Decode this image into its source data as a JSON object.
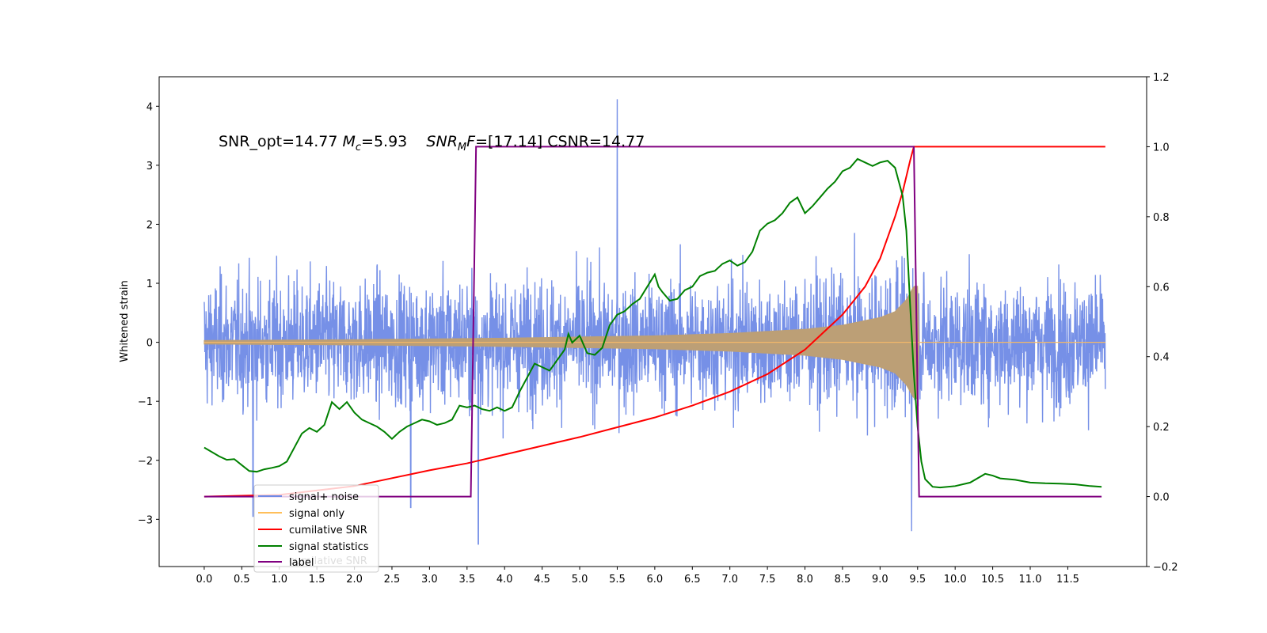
{
  "chart_data": {
    "type": "line",
    "annotation": "SNR_opt=14.77 M_c=5.93   SNR_M F=[17.14] CSNR=14.77",
    "annotation_parts": {
      "p1": "SNR_opt=14.77 ",
      "p2": "M",
      "p3": "c",
      "p4": "=5.93    ",
      "p5": "SNR",
      "p6": "M",
      "p7": "F",
      "p8": "=[17.14] CSNR=14.77"
    },
    "ylabel": "Whitened strain",
    "xlim": [
      -0.6,
      12.55
    ],
    "ylim": [
      -3.8,
      4.5
    ],
    "y2lim": [
      -0.2,
      1.2
    ],
    "x_ticks": [
      "0.0",
      "0.5",
      "1.0",
      "1.5",
      "2.0",
      "2.5",
      "3.0",
      "3.5",
      "4.0",
      "4.5",
      "5.0",
      "5.5",
      "6.0",
      "6.5",
      "7.0",
      "7.5",
      "8.0",
      "8.5",
      "9.0",
      "9.5",
      "10.0",
      "10.5",
      "11.0",
      "11.5"
    ],
    "y_ticks": [
      "4",
      "3",
      "2",
      "1",
      "0",
      "−1",
      "−2",
      "−3"
    ],
    "y2_ticks": [
      "1.2",
      "1.0",
      "0.8",
      "0.6",
      "0.4",
      "0.2",
      "0.0",
      "−0.2"
    ],
    "legend": {
      "placement": "lower-left",
      "entries": [
        {
          "label": "signal+ noise",
          "color": "#6f8ae6"
        },
        {
          "label": "signal only",
          "color": "#ffbf5a"
        },
        {
          "label": "cumilative SNR",
          "color": "#ff0000"
        },
        {
          "label": "signal statistics",
          "color": "#008000"
        },
        {
          "label": "label",
          "color": "#800080"
        }
      ],
      "overlap_text": "cumilative SNR"
    },
    "series": [
      {
        "name": "signal+ noise",
        "axis": "left",
        "color": "#6f8ae6",
        "x_range": [
          0.0,
          12.0
        ],
        "typical_amplitude": 1.0,
        "visible_peaks": [
          {
            "x": 5.5,
            "y": 4.12
          },
          {
            "x": 3.65,
            "y": -3.42
          },
          {
            "x": 9.42,
            "y": -3.2
          },
          {
            "x": 0.65,
            "y": -2.95
          },
          {
            "x": 2.75,
            "y": -2.8
          }
        ]
      },
      {
        "name": "signal only",
        "axis": "left",
        "color": "#ffbf5a",
        "envelope": {
          "x": [
            0.0,
            2.0,
            4.0,
            6.0,
            7.0,
            8.0,
            8.5,
            9.0,
            9.2,
            9.35,
            9.45,
            9.5,
            12.0
          ],
          "amplitude": [
            0.03,
            0.045,
            0.07,
            0.11,
            0.15,
            0.22,
            0.29,
            0.42,
            0.52,
            0.72,
            0.95,
            0.0,
            0.0
          ]
        }
      },
      {
        "name": "cumilative SNR",
        "axis": "right",
        "color": "#ff0000",
        "x": [
          0.0,
          1.0,
          2.0,
          3.0,
          3.5,
          4.0,
          5.0,
          6.0,
          6.5,
          7.0,
          7.5,
          8.0,
          8.5,
          8.8,
          9.0,
          9.2,
          9.3,
          9.4,
          9.45,
          9.5,
          12.0
        ],
        "y": [
          0.0,
          0.005,
          0.03,
          0.075,
          0.095,
          0.12,
          0.17,
          0.226,
          0.26,
          0.3,
          0.35,
          0.42,
          0.52,
          0.6,
          0.68,
          0.8,
          0.87,
          0.96,
          1.0,
          1.0,
          1.0
        ]
      },
      {
        "name": "signal statistics",
        "axis": "right",
        "color": "#008000",
        "x": [
          0.0,
          0.2,
          0.3,
          0.4,
          0.5,
          0.6,
          0.7,
          0.8,
          0.9,
          1.0,
          1.1,
          1.2,
          1.3,
          1.4,
          1.5,
          1.6,
          1.7,
          1.8,
          1.9,
          2.0,
          2.1,
          2.2,
          2.3,
          2.4,
          2.5,
          2.6,
          2.7,
          2.8,
          2.9,
          3.0,
          3.1,
          3.2,
          3.3,
          3.4,
          3.5,
          3.6,
          3.7,
          3.8,
          3.9,
          4.0,
          4.1,
          4.2,
          4.3,
          4.4,
          4.5,
          4.6,
          4.7,
          4.8,
          4.85,
          4.9,
          5.0,
          5.1,
          5.2,
          5.3,
          5.4,
          5.5,
          5.6,
          5.7,
          5.8,
          5.9,
          6.0,
          6.05,
          6.1,
          6.2,
          6.3,
          6.4,
          6.5,
          6.6,
          6.7,
          6.8,
          6.9,
          7.0,
          7.1,
          7.2,
          7.3,
          7.4,
          7.5,
          7.6,
          7.7,
          7.8,
          7.9,
          8.0,
          8.1,
          8.2,
          8.3,
          8.4,
          8.5,
          8.6,
          8.7,
          8.8,
          8.9,
          9.0,
          9.1,
          9.2,
          9.25,
          9.3,
          9.35,
          9.4,
          9.45,
          9.5,
          9.55,
          9.6,
          9.7,
          9.8,
          10.0,
          10.2,
          10.4,
          10.5,
          10.6,
          10.8,
          11.0,
          11.2,
          11.4,
          11.6,
          11.8,
          11.95
        ],
        "y": [
          0.14,
          0.115,
          0.105,
          0.107,
          0.09,
          0.073,
          0.071,
          0.078,
          0.082,
          0.087,
          0.1,
          0.14,
          0.18,
          0.196,
          0.185,
          0.205,
          0.27,
          0.25,
          0.27,
          0.24,
          0.22,
          0.21,
          0.2,
          0.185,
          0.165,
          0.185,
          0.2,
          0.21,
          0.22,
          0.215,
          0.205,
          0.21,
          0.22,
          0.26,
          0.255,
          0.26,
          0.25,
          0.245,
          0.255,
          0.245,
          0.255,
          0.3,
          0.34,
          0.38,
          0.37,
          0.36,
          0.39,
          0.42,
          0.465,
          0.44,
          0.46,
          0.41,
          0.405,
          0.425,
          0.49,
          0.52,
          0.53,
          0.55,
          0.565,
          0.6,
          0.635,
          0.6,
          0.585,
          0.56,
          0.565,
          0.59,
          0.6,
          0.63,
          0.64,
          0.645,
          0.665,
          0.675,
          0.66,
          0.67,
          0.7,
          0.76,
          0.78,
          0.79,
          0.81,
          0.84,
          0.855,
          0.81,
          0.83,
          0.855,
          0.88,
          0.9,
          0.93,
          0.94,
          0.965,
          0.955,
          0.945,
          0.955,
          0.96,
          0.94,
          0.9,
          0.86,
          0.76,
          0.55,
          0.35,
          0.2,
          0.1,
          0.05,
          0.028,
          0.026,
          0.03,
          0.04,
          0.065,
          0.06,
          0.052,
          0.048,
          0.04,
          0.038,
          0.037,
          0.035,
          0.03,
          0.028
        ]
      },
      {
        "name": "label",
        "axis": "right",
        "color": "#800080",
        "x": [
          0.0,
          3.55,
          3.62,
          9.45,
          9.52,
          11.95
        ],
        "y": [
          0.0,
          0.0,
          1.0,
          1.0,
          0.0,
          0.0
        ]
      }
    ]
  }
}
